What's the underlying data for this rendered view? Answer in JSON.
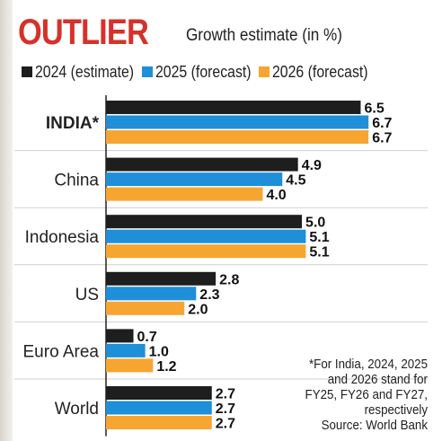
{
  "title": "OUTLIER",
  "subtitle": "Growth estimate (in %)",
  "colors": {
    "title": "#d6312a",
    "grid": "#cfcfcf"
  },
  "footnote": {
    "line1": "*For India, 2024, 2025",
    "line2": "and 2026 stand for",
    "line3": "FY25, FY26 and FY27,",
    "line4": "respectively",
    "line5": "Source: World Bank"
  },
  "chart_data": {
    "type": "bar",
    "orientation": "horizontal",
    "categories": [
      "INDIA*",
      "China",
      "Indonesia",
      "US",
      "Euro Area",
      "World"
    ],
    "series": [
      {
        "name": "2024 (estimate)",
        "color": "#1e1e1e",
        "values": [
          6.5,
          4.9,
          5.0,
          2.8,
          0.7,
          2.7
        ]
      },
      {
        "name": "2025 (forecast)",
        "color": "#1e8fd8",
        "values": [
          6.7,
          4.5,
          5.1,
          2.3,
          1.0,
          2.7
        ]
      },
      {
        "name": "2026 (forecast)",
        "color": "#f7a531",
        "values": [
          6.7,
          4.0,
          5.1,
          2.0,
          1.2,
          2.7
        ]
      }
    ],
    "value_labels": [
      [
        "6.5",
        "6.7",
        "6.7"
      ],
      [
        "4.9",
        "4.5",
        "4.0"
      ],
      [
        "5.0",
        "5.1",
        "5.1"
      ],
      [
        "2.8",
        "2.3",
        "2.0"
      ],
      [
        "0.7",
        "1.0",
        "1.2"
      ],
      [
        "2.7",
        "2.7",
        "2.7"
      ]
    ],
    "xlim": [
      0,
      7.2
    ],
    "grid": false,
    "legend": "top"
  }
}
